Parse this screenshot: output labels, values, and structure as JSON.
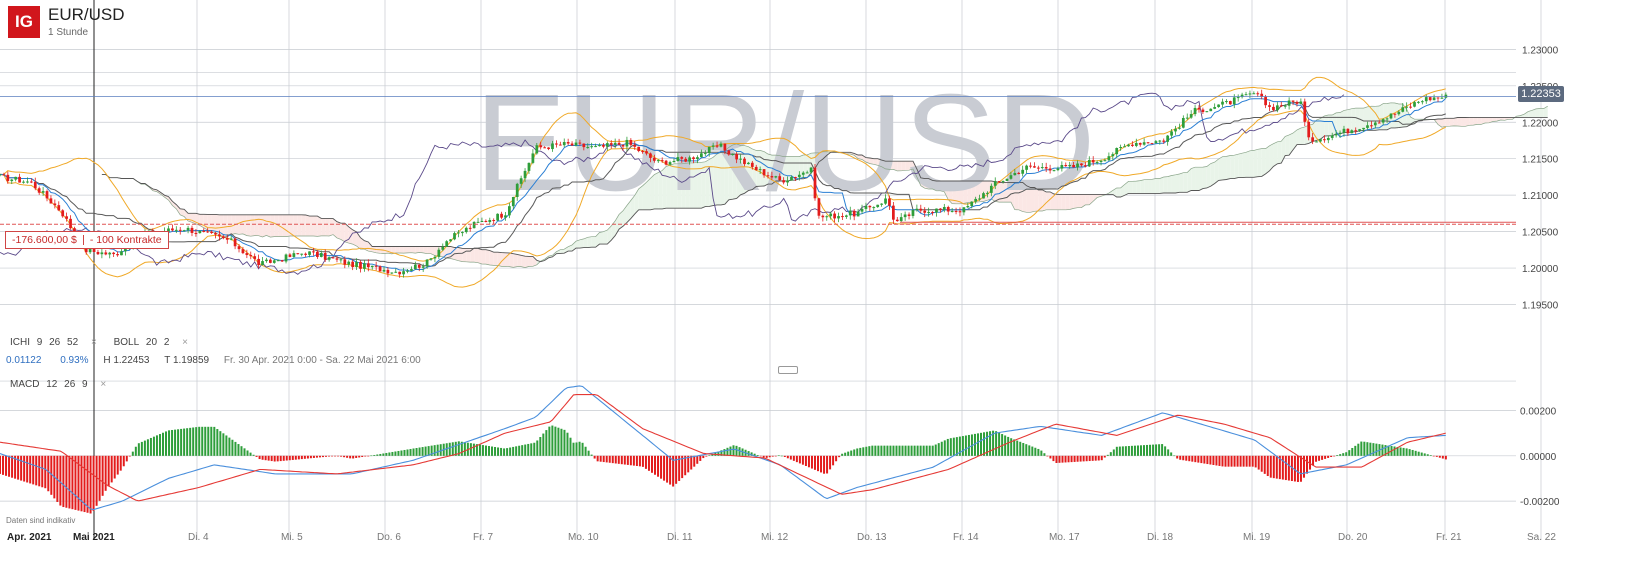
{
  "header": {
    "logo_text": "IG",
    "instrument": "EUR/USD",
    "timeframe": "1 Stunde",
    "watermark": "EUR/USD"
  },
  "indicators": {
    "ichi": {
      "name": "ICHI",
      "p1": "9",
      "p2": "26",
      "p3": "52"
    },
    "boll": {
      "name": "BOLL",
      "p1": "20",
      "p2": "2"
    },
    "macd": {
      "name": "MACD",
      "p1": "12",
      "p2": "26",
      "p3": "9"
    },
    "close_symbol": "×"
  },
  "stats": {
    "change": "0.01122",
    "change_pct": "0.93%",
    "high": "H 1.22453",
    "low": "T 1.19859",
    "range": "Fr. 30 Apr. 2021 0:00 - Sa. 22 Mai 2021 6:00"
  },
  "position": {
    "pnl": "-176.600,00 $",
    "size": "- 100 Kontrakte",
    "level": 1.206
  },
  "current_price": {
    "label": "1.22353",
    "value": 1.22353
  },
  "disclaimer": "Daten sind indikativ",
  "colors": {
    "up": "#2e9e3a",
    "down": "#e31c1c",
    "macd_line": "#4a8fdc",
    "signal_line": "#e53935",
    "bollinger": "#f0a928",
    "kijun": "#5a5a5a",
    "tenkan": "#2a7fd4",
    "chikou": "#5b4a8a",
    "cloud_bull": "#e9f4e9",
    "cloud_bear": "#fbe7e5",
    "position_line": "#e05555",
    "grid": "#c7cbd1",
    "watermark": "#c9ccd3"
  },
  "chart_data": {
    "type": "candlestick",
    "instrument": "EUR/USD",
    "timeframe": "1 Stunde",
    "price_axis": {
      "range": [
        1.1915,
        1.2365
      ],
      "ticks": [
        "1.23000",
        "1.22500",
        "1.22000",
        "1.21500",
        "1.21000",
        "1.20500",
        "1.20000",
        "1.19500"
      ],
      "tick_values": [
        1.23,
        1.225,
        1.22,
        1.215,
        1.21,
        1.205,
        1.2,
        1.195
      ]
    },
    "macd_axis": {
      "range": [
        -0.0031,
        0.0037
      ],
      "ticks": [
        "0.00200",
        "0.00000",
        "-0.00200"
      ],
      "tick_values": [
        0.002,
        0.0,
        -0.002
      ]
    },
    "time_axis": {
      "labels": [
        "Apr. 2021",
        "Mai 2021",
        "Di. 4",
        "Mi. 5",
        "Do. 6",
        "Fr. 7",
        "Mo. 10",
        "Di. 11",
        "Mi. 12",
        "Do. 13",
        "Fr. 14",
        "Mo. 17",
        "Di. 18",
        "Mi. 19",
        "Do. 20",
        "Fr. 21",
        "Sa. 22"
      ]
    },
    "price_path": [
      [
        0,
        1.2125
      ],
      [
        0.02,
        1.2118
      ],
      [
        0.04,
        1.2078
      ],
      [
        0.055,
        1.2025
      ],
      [
        0.075,
        1.2018
      ],
      [
        0.09,
        1.2045
      ],
      [
        0.12,
        1.2055
      ],
      [
        0.15,
        1.2038
      ],
      [
        0.17,
        1.2005
      ],
      [
        0.2,
        1.2022
      ],
      [
        0.23,
        1.2005
      ],
      [
        0.26,
        1.1995
      ],
      [
        0.28,
        1.2008
      ],
      [
        0.29,
        1.2035
      ],
      [
        0.31,
        1.206
      ],
      [
        0.33,
        1.2075
      ],
      [
        0.35,
        1.2165
      ],
      [
        0.37,
        1.217
      ],
      [
        0.39,
        1.2165
      ],
      [
        0.41,
        1.2172
      ],
      [
        0.43,
        1.2145
      ],
      [
        0.45,
        1.215
      ],
      [
        0.47,
        1.2168
      ],
      [
        0.49,
        1.214
      ],
      [
        0.51,
        1.212
      ],
      [
        0.53,
        1.2135
      ],
      [
        0.535,
        1.207
      ],
      [
        0.56,
        1.2075
      ],
      [
        0.58,
        1.2095
      ],
      [
        0.585,
        1.2062
      ],
      [
        0.6,
        1.208
      ],
      [
        0.63,
        1.208
      ],
      [
        0.65,
        1.2115
      ],
      [
        0.67,
        1.2138
      ],
      [
        0.7,
        1.2138
      ],
      [
        0.72,
        1.215
      ],
      [
        0.74,
        1.2172
      ],
      [
        0.76,
        1.2175
      ],
      [
        0.78,
        1.2215
      ],
      [
        0.8,
        1.2225
      ],
      [
        0.82,
        1.224
      ],
      [
        0.83,
        1.222
      ],
      [
        0.85,
        1.223
      ],
      [
        0.855,
        1.2175
      ],
      [
        0.87,
        1.2182
      ],
      [
        0.89,
        1.2195
      ],
      [
        0.91,
        1.221
      ],
      [
        0.93,
        1.2232
      ],
      [
        0.945,
        1.2235
      ]
    ],
    "macd_path": [
      [
        0,
        0.0001
      ],
      [
        0.03,
        -0.0006
      ],
      [
        0.06,
        -0.0024
      ],
      [
        0.08,
        -0.002
      ],
      [
        0.11,
        -0.001
      ],
      [
        0.14,
        -0.0004
      ],
      [
        0.18,
        -0.0008
      ],
      [
        0.23,
        -0.0008
      ],
      [
        0.27,
        -0.0002
      ],
      [
        0.3,
        0.0005
      ],
      [
        0.33,
        0.0012
      ],
      [
        0.35,
        0.0017
      ],
      [
        0.37,
        0.003
      ],
      [
        0.38,
        0.0031
      ],
      [
        0.4,
        0.002
      ],
      [
        0.44,
        -0.0002
      ],
      [
        0.48,
        0.0003
      ],
      [
        0.51,
        -0.0004
      ],
      [
        0.54,
        -0.0019
      ],
      [
        0.56,
        -0.0014
      ],
      [
        0.61,
        -0.0005
      ],
      [
        0.65,
        0.001
      ],
      [
        0.68,
        0.0013
      ],
      [
        0.72,
        0.0009
      ],
      [
        0.76,
        0.0019
      ],
      [
        0.79,
        0.0013
      ],
      [
        0.82,
        0.0007
      ],
      [
        0.85,
        -0.0008
      ],
      [
        0.88,
        -0.0004
      ],
      [
        0.92,
        0.0008
      ],
      [
        0.945,
        0.0009
      ]
    ],
    "signal_path": [
      [
        0,
        0.0006
      ],
      [
        0.04,
        0.0002
      ],
      [
        0.07,
        -0.0013
      ],
      [
        0.09,
        -0.002
      ],
      [
        0.13,
        -0.0014
      ],
      [
        0.17,
        -0.0006
      ],
      [
        0.22,
        -0.0008
      ],
      [
        0.27,
        -0.0004
      ],
      [
        0.3,
        0.0001
      ],
      [
        0.33,
        0.001
      ],
      [
        0.36,
        0.0015
      ],
      [
        0.375,
        0.0027
      ],
      [
        0.39,
        0.0027
      ],
      [
        0.42,
        0.0012
      ],
      [
        0.46,
        0.0001
      ],
      [
        0.5,
        -0.0001
      ],
      [
        0.55,
        -0.0017
      ],
      [
        0.57,
        -0.0015
      ],
      [
        0.62,
        -0.0006
      ],
      [
        0.66,
        0.0006
      ],
      [
        0.69,
        0.0014
      ],
      [
        0.73,
        0.0009
      ],
      [
        0.77,
        0.0018
      ],
      [
        0.8,
        0.0014
      ],
      [
        0.83,
        0.0008
      ],
      [
        0.86,
        -0.0005
      ],
      [
        0.89,
        -0.0005
      ],
      [
        0.92,
        0.0006
      ],
      [
        0.945,
        0.001
      ]
    ]
  }
}
